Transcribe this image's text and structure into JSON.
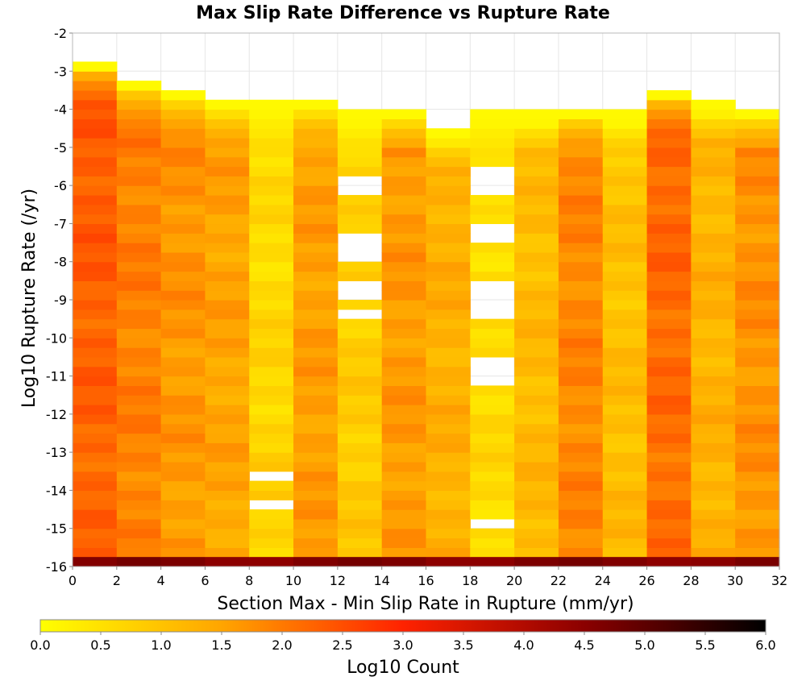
{
  "chart_data": {
    "type": "heatmap",
    "title": "Max Slip Rate Difference vs Rupture Rate",
    "xlabel": "Section Max - Min Slip Rate in Rupture (mm/yr)",
    "ylabel": "Log10 Rupture Rate (/yr)",
    "xlim": [
      0,
      32
    ],
    "ylim": [
      -16,
      -2
    ],
    "x_ticks": [
      "0",
      "2",
      "4",
      "6",
      "8",
      "10",
      "12",
      "14",
      "16",
      "18",
      "20",
      "22",
      "24",
      "26",
      "28",
      "30",
      "32"
    ],
    "y_ticks": [
      "-2",
      "-3",
      "-4",
      "-5",
      "-6",
      "-7",
      "-8",
      "-9",
      "-10",
      "-11",
      "-12",
      "-13",
      "-14",
      "-15",
      "-16"
    ],
    "x_bin_width": 2,
    "y_bin_height": 0.25,
    "grid": true,
    "colorbar": {
      "label": "Log10 Count",
      "min": 0.0,
      "max": 6.0,
      "ticks": [
        "0.0",
        "0.5",
        "1.0",
        "1.5",
        "2.0",
        "2.5",
        "3.0",
        "3.5",
        "4.0",
        "4.5",
        "5.0",
        "5.5",
        "6.0"
      ],
      "colors": [
        "#ffff00",
        "#ffa500",
        "#ff2200",
        "#8b0000",
        "#000000"
      ]
    },
    "columns": [
      {
        "x": "0-2",
        "top": -2.75,
        "base": 2.2,
        "mid": 2.4,
        "gaps": []
      },
      {
        "x": "2-4",
        "top": -3.25,
        "base": 1.9,
        "mid": 1.95,
        "gaps": []
      },
      {
        "x": "4-6",
        "top": -3.5,
        "base": 1.6,
        "mid": 1.75,
        "gaps": []
      },
      {
        "x": "6-8",
        "top": -3.75,
        "base": 1.45,
        "mid": 1.55,
        "gaps": []
      },
      {
        "x": "8-10",
        "top": -3.75,
        "base": 0.8,
        "mid": 0.55,
        "gaps": [
          [
            -13.75,
            -13.5
          ],
          [
            -14.5,
            -14.25
          ]
        ]
      },
      {
        "x": "10-12",
        "top": -3.75,
        "base": 1.6,
        "mid": 1.55,
        "gaps": []
      },
      {
        "x": "12-14",
        "top": -4.0,
        "base": 0.9,
        "mid": 0.75,
        "gaps": [
          [
            -6.25,
            -5.75
          ],
          [
            -8.0,
            -7.25
          ],
          [
            -9.0,
            -8.5
          ],
          [
            -9.5,
            -9.25
          ]
        ]
      },
      {
        "x": "14-16",
        "top": -4.0,
        "base": 1.6,
        "mid": 1.65,
        "gaps": []
      },
      {
        "x": "16-18",
        "top": -4.5,
        "base": 1.3,
        "mid": 1.35,
        "gaps": []
      },
      {
        "x": "18-20",
        "top": -4.0,
        "base": 0.65,
        "mid": 0.5,
        "gaps": [
          [
            -6.25,
            -5.5
          ],
          [
            -7.5,
            -7.0
          ],
          [
            -9.5,
            -8.5
          ],
          [
            -11.25,
            -10.5
          ],
          [
            -15.0,
            -14.75
          ]
        ]
      },
      {
        "x": "20-22",
        "top": -4.0,
        "base": 1.2,
        "mid": 1.1,
        "gaps": []
      },
      {
        "x": "22-24",
        "top": -4.0,
        "base": 1.85,
        "mid": 1.85,
        "gaps": []
      },
      {
        "x": "24-26",
        "top": -4.0,
        "base": 1.15,
        "mid": 1.0,
        "gaps": []
      },
      {
        "x": "26-28",
        "top": -3.5,
        "base": 2.1,
        "mid": 2.25,
        "gaps": []
      },
      {
        "x": "28-30",
        "top": -3.75,
        "base": 1.3,
        "mid": 1.25,
        "gaps": []
      },
      {
        "x": "30-32",
        "top": -4.0,
        "base": 1.7,
        "mid": 1.75,
        "gaps": []
      }
    ],
    "bottom_row": {
      "y": "-16.0 to -15.75",
      "value": 4.6
    }
  }
}
